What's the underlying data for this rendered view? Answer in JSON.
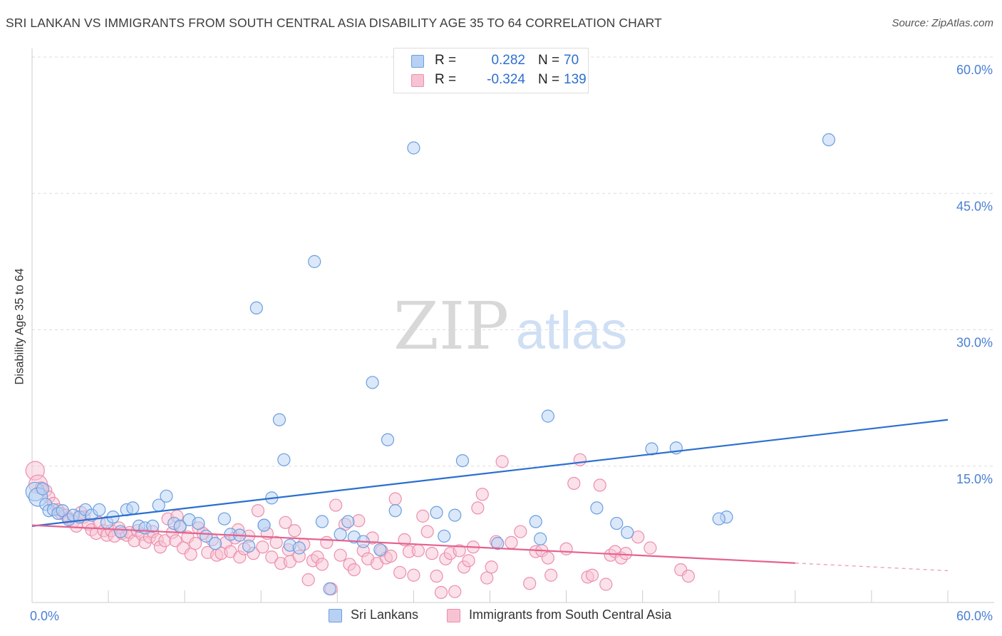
{
  "title": "SRI LANKAN VS IMMIGRANTS FROM SOUTH CENTRAL ASIA DISABILITY AGE 35 TO 64 CORRELATION CHART",
  "source": "Source: ZipAtlas.com",
  "watermark": {
    "zip": "ZIP",
    "atlas": "atlas"
  },
  "legend": {
    "rows": [
      {
        "r_label": "R =",
        "r_value": "0.282",
        "n_label": "N =",
        "n_value": "70"
      },
      {
        "r_label": "R =",
        "r_value": "-0.324",
        "n_label": "N =",
        "n_value": "139"
      }
    ]
  },
  "colors": {
    "blue_fill": "#b8d1f3",
    "blue_stroke": "#6b9ee0",
    "blue_line": "#2a6fd0",
    "pink_fill": "#f7c3d3",
    "pink_stroke": "#ec8fac",
    "pink_line": "#e4628e",
    "axis_text": "#4a7fd4",
    "grid": "#dedede"
  },
  "chart_data": {
    "type": "scatter",
    "title": "SRI LANKAN VS IMMIGRANTS FROM SOUTH CENTRAL ASIA DISABILITY AGE 35 TO 64 CORRELATION CHART",
    "xlabel": "",
    "ylabel": "Disability Age 35 to 64",
    "xlim": [
      0,
      60
    ],
    "ylim": [
      0,
      60
    ],
    "x_tick_labels": [
      "0.0%",
      "60.0%"
    ],
    "y_tick_labels": [
      "15.0%",
      "30.0%",
      "45.0%",
      "60.0%"
    ],
    "y_ticks": [
      15,
      30,
      45,
      60
    ],
    "grid": true,
    "legend_position": "bottom",
    "series": [
      {
        "name": "Sri Lankans",
        "color": "#6b9ee0",
        "trend": {
          "x": [
            0,
            60
          ],
          "y": [
            8.4,
            20.1
          ],
          "dashed_from": null
        },
        "points": [
          [
            0.2,
            12.2
          ],
          [
            0.4,
            11.6
          ],
          [
            0.7,
            12.5
          ],
          [
            0.9,
            10.8
          ],
          [
            1.1,
            10.1
          ],
          [
            1.4,
            10.2
          ],
          [
            1.7,
            9.8
          ],
          [
            2.0,
            10.1
          ],
          [
            2.4,
            9.1
          ],
          [
            2.7,
            9.6
          ],
          [
            3.1,
            9.4
          ],
          [
            3.5,
            10.2
          ],
          [
            3.9,
            9.6
          ],
          [
            4.4,
            10.2
          ],
          [
            4.9,
            8.8
          ],
          [
            5.3,
            9.4
          ],
          [
            5.8,
            7.8
          ],
          [
            6.2,
            10.2
          ],
          [
            6.6,
            10.4
          ],
          [
            7.0,
            8.4
          ],
          [
            7.4,
            8.2
          ],
          [
            7.9,
            8.4
          ],
          [
            8.3,
            10.7
          ],
          [
            8.8,
            11.7
          ],
          [
            9.3,
            8.7
          ],
          [
            9.7,
            8.4
          ],
          [
            10.3,
            9.1
          ],
          [
            10.9,
            8.7
          ],
          [
            11.4,
            7.3
          ],
          [
            12.0,
            6.5
          ],
          [
            12.6,
            9.2
          ],
          [
            13.0,
            7.5
          ],
          [
            13.6,
            7.4
          ],
          [
            14.2,
            6.2
          ],
          [
            14.7,
            32.4
          ],
          [
            15.2,
            8.5
          ],
          [
            15.7,
            11.5
          ],
          [
            16.2,
            20.1
          ],
          [
            16.5,
            15.7
          ],
          [
            16.9,
            6.3
          ],
          [
            17.5,
            6.0
          ],
          [
            18.5,
            37.5
          ],
          [
            19.0,
            8.9
          ],
          [
            19.5,
            1.5
          ],
          [
            20.2,
            7.5
          ],
          [
            20.7,
            8.9
          ],
          [
            21.1,
            7.2
          ],
          [
            21.7,
            6.7
          ],
          [
            22.3,
            24.2
          ],
          [
            22.8,
            5.8
          ],
          [
            23.3,
            17.9
          ],
          [
            23.8,
            10.1
          ],
          [
            25.0,
            50.0
          ],
          [
            26.5,
            9.9
          ],
          [
            27.0,
            7.3
          ],
          [
            27.7,
            9.6
          ],
          [
            28.2,
            15.6
          ],
          [
            30.5,
            6.5
          ],
          [
            33.0,
            8.9
          ],
          [
            33.3,
            7.0
          ],
          [
            33.8,
            20.5
          ],
          [
            37.0,
            10.4
          ],
          [
            38.3,
            8.7
          ],
          [
            39.0,
            7.7
          ],
          [
            40.6,
            16.9
          ],
          [
            42.2,
            17.0
          ],
          [
            45.5,
            9.4
          ],
          [
            52.2,
            50.9
          ],
          [
            45.0,
            9.2
          ],
          [
            15.2,
            8.5
          ]
        ]
      },
      {
        "name": "Immigrants from South Central Asia",
        "color": "#ec8fac",
        "trend": {
          "x": [
            0,
            60
          ],
          "y": [
            8.5,
            3.5
          ],
          "dashed_from": 50
        },
        "points": [
          [
            0.2,
            14.5
          ],
          [
            0.4,
            13.0
          ],
          [
            0.6,
            12.6
          ],
          [
            0.9,
            12.3
          ],
          [
            1.1,
            11.6
          ],
          [
            1.4,
            10.9
          ],
          [
            1.7,
            10.2
          ],
          [
            1.9,
            9.8
          ],
          [
            2.2,
            9.6
          ],
          [
            2.4,
            9.3
          ],
          [
            2.7,
            8.9
          ],
          [
            2.9,
            8.4
          ],
          [
            3.2,
            9.9
          ],
          [
            3.4,
            9.4
          ],
          [
            3.7,
            8.6
          ],
          [
            3.9,
            8.0
          ],
          [
            4.2,
            7.6
          ],
          [
            4.4,
            8.8
          ],
          [
            4.7,
            7.9
          ],
          [
            4.9,
            7.4
          ],
          [
            5.2,
            7.9
          ],
          [
            5.4,
            7.3
          ],
          [
            5.7,
            8.2
          ],
          [
            5.9,
            7.6
          ],
          [
            6.2,
            7.4
          ],
          [
            6.4,
            7.7
          ],
          [
            6.7,
            6.8
          ],
          [
            6.9,
            7.9
          ],
          [
            7.2,
            7.5
          ],
          [
            7.4,
            6.6
          ],
          [
            7.7,
            7.2
          ],
          [
            7.9,
            7.8
          ],
          [
            8.2,
            6.9
          ],
          [
            8.4,
            6.1
          ],
          [
            8.7,
            6.8
          ],
          [
            8.9,
            9.2
          ],
          [
            9.2,
            7.7
          ],
          [
            9.4,
            6.8
          ],
          [
            9.7,
            8.3
          ],
          [
            9.9,
            6.0
          ],
          [
            10.2,
            7.2
          ],
          [
            10.4,
            5.3
          ],
          [
            10.7,
            6.5
          ],
          [
            10.9,
            8.2
          ],
          [
            11.2,
            7.6
          ],
          [
            11.5,
            5.5
          ],
          [
            11.8,
            6.9
          ],
          [
            12.1,
            5.2
          ],
          [
            12.4,
            5.4
          ],
          [
            12.7,
            6.6
          ],
          [
            13.0,
            5.6
          ],
          [
            13.3,
            7.1
          ],
          [
            13.6,
            5.0
          ],
          [
            13.9,
            5.9
          ],
          [
            14.2,
            7.3
          ],
          [
            14.5,
            5.4
          ],
          [
            14.8,
            10.1
          ],
          [
            15.1,
            6.1
          ],
          [
            15.4,
            7.6
          ],
          [
            15.7,
            5.0
          ],
          [
            16.0,
            6.6
          ],
          [
            16.3,
            4.3
          ],
          [
            16.6,
            8.8
          ],
          [
            16.9,
            4.5
          ],
          [
            17.2,
            7.9
          ],
          [
            17.5,
            5.1
          ],
          [
            17.8,
            6.4
          ],
          [
            18.1,
            2.5
          ],
          [
            18.4,
            4.6
          ],
          [
            18.7,
            5.0
          ],
          [
            19.0,
            4.2
          ],
          [
            19.3,
            6.6
          ],
          [
            19.6,
            1.5
          ],
          [
            19.9,
            10.7
          ],
          [
            20.2,
            5.2
          ],
          [
            20.5,
            8.6
          ],
          [
            20.8,
            4.2
          ],
          [
            21.1,
            3.6
          ],
          [
            21.4,
            9.0
          ],
          [
            21.7,
            5.7
          ],
          [
            22.0,
            4.8
          ],
          [
            22.3,
            7.1
          ],
          [
            22.6,
            4.3
          ],
          [
            22.9,
            5.7
          ],
          [
            23.2,
            4.9
          ],
          [
            23.5,
            5.1
          ],
          [
            23.8,
            11.4
          ],
          [
            24.1,
            3.3
          ],
          [
            24.4,
            6.9
          ],
          [
            24.7,
            5.6
          ],
          [
            25.0,
            3.0
          ],
          [
            25.3,
            5.7
          ],
          [
            25.6,
            9.5
          ],
          [
            25.9,
            7.8
          ],
          [
            26.2,
            5.4
          ],
          [
            26.5,
            2.9
          ],
          [
            26.8,
            1.1
          ],
          [
            27.1,
            4.8
          ],
          [
            27.4,
            5.4
          ],
          [
            27.7,
            1.2
          ],
          [
            28.0,
            5.7
          ],
          [
            28.3,
            3.9
          ],
          [
            28.6,
            4.6
          ],
          [
            28.9,
            6.1
          ],
          [
            29.2,
            10.4
          ],
          [
            29.5,
            11.9
          ],
          [
            29.8,
            2.7
          ],
          [
            30.1,
            3.9
          ],
          [
            30.4,
            6.7
          ],
          [
            30.8,
            15.5
          ],
          [
            31.4,
            6.6
          ],
          [
            32.0,
            7.8
          ],
          [
            32.6,
            2.1
          ],
          [
            33.0,
            5.6
          ],
          [
            33.4,
            5.7
          ],
          [
            33.8,
            4.9
          ],
          [
            34.0,
            3.0
          ],
          [
            35.0,
            5.9
          ],
          [
            35.5,
            13.1
          ],
          [
            35.9,
            15.7
          ],
          [
            36.4,
            2.8
          ],
          [
            36.7,
            3.0
          ],
          [
            37.2,
            12.9
          ],
          [
            37.6,
            2.0
          ],
          [
            37.9,
            5.2
          ],
          [
            38.2,
            5.6
          ],
          [
            38.6,
            4.9
          ],
          [
            38.9,
            5.4
          ],
          [
            39.7,
            7.2
          ],
          [
            40.5,
            6.0
          ],
          [
            42.5,
            3.6
          ],
          [
            43.0,
            2.9
          ],
          [
            9.5,
            9.5
          ],
          [
            13.5,
            8.0
          ],
          [
            16.8,
            5.8
          ]
        ]
      }
    ]
  },
  "bottom_legend": {
    "items": [
      "Sri Lankans",
      "Immigrants from South Central Asia"
    ]
  }
}
